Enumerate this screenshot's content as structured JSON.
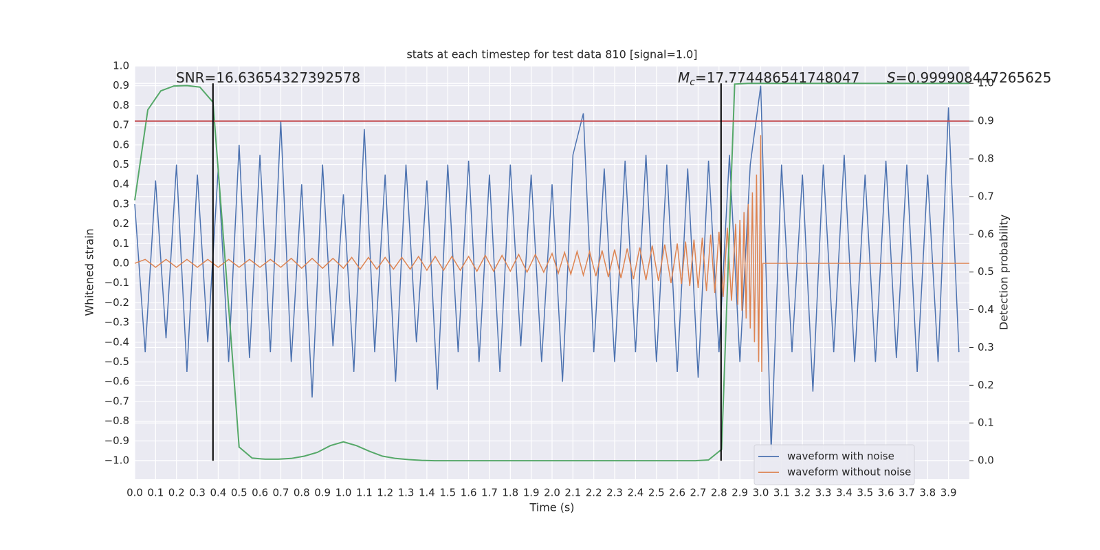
{
  "chart_data": {
    "type": "line",
    "title": "stats at each timestep for test data 810 [signal=1.0]",
    "xlabel": "Time (s)",
    "ylabel": "Whitened strain",
    "y2label": "Detection probability",
    "xlim": [
      0,
      4.0
    ],
    "ylim": [
      -1.094,
      1.0
    ],
    "y2lim": [
      -0.049,
      1.046
    ],
    "xticks": [
      {
        "value": 0,
        "label": "0.0"
      },
      0.1,
      0.2,
      0.3,
      0.4,
      0.5,
      0.6,
      0.7,
      0.8,
      0.9,
      {
        "value": 1,
        "label": "1.0"
      },
      1.1,
      1.2,
      1.3,
      1.4,
      1.5,
      1.6,
      1.7,
      1.8,
      1.9,
      {
        "value": 2,
        "label": "2.0"
      },
      2.1,
      2.2,
      2.3,
      2.4,
      2.5,
      2.6,
      2.7,
      2.8,
      2.9,
      {
        "value": 3,
        "label": "3.0"
      },
      3.1,
      3.2,
      3.3,
      3.4,
      3.5,
      3.6,
      3.7,
      3.8,
      3.9
    ],
    "yticks": [
      {
        "value": -1,
        "label": "−1.0"
      },
      {
        "value": -0.9,
        "label": "−0.9"
      },
      {
        "value": -0.8,
        "label": "−0.8"
      },
      {
        "value": -0.7,
        "label": "−0.7"
      },
      {
        "value": -0.6,
        "label": "−0.6"
      },
      {
        "value": -0.5,
        "label": "−0.5"
      },
      {
        "value": -0.4,
        "label": "−0.4"
      },
      {
        "value": -0.3,
        "label": "−0.3"
      },
      {
        "value": -0.2,
        "label": "−0.2"
      },
      {
        "value": -0.1,
        "label": "−0.1"
      },
      {
        "value": 0,
        "label": "0.0"
      },
      0.1,
      0.2,
      0.3,
      0.4,
      0.5,
      0.6,
      0.7,
      0.8,
      0.9,
      {
        "value": 1,
        "label": "1.0"
      }
    ],
    "y2ticks": [
      {
        "value": 0,
        "label": "0.0"
      },
      0.1,
      0.2,
      0.3,
      0.4,
      0.5,
      0.6,
      0.7,
      0.8,
      0.9,
      {
        "value": 1,
        "label": "1.0"
      }
    ],
    "grid": true,
    "legend": "lower right",
    "series": [
      {
        "name": "waveform with noise",
        "color": "#4c72b0",
        "x": [
          0,
          0.05,
          0.1,
          0.15,
          0.2,
          0.25,
          0.3,
          0.35,
          0.4,
          0.45,
          0.5,
          0.55,
          0.6,
          0.65,
          0.7,
          0.75,
          0.8,
          0.85,
          0.9,
          0.95,
          1.0,
          1.05,
          1.1,
          1.15,
          1.2,
          1.25,
          1.3,
          1.35,
          1.4,
          1.45,
          1.5,
          1.55,
          1.6,
          1.65,
          1.7,
          1.75,
          1.8,
          1.85,
          1.9,
          1.95,
          2.0,
          2.05,
          2.1,
          2.15,
          2.2,
          2.25,
          2.3,
          2.35,
          2.4,
          2.45,
          2.5,
          2.55,
          2.6,
          2.65,
          2.7,
          2.75,
          2.8,
          2.85,
          2.9,
          2.95,
          3.0,
          3.05,
          3.1,
          3.15,
          3.2,
          3.25,
          3.3,
          3.35,
          3.4,
          3.45,
          3.5,
          3.55,
          3.6,
          3.65,
          3.7,
          3.75,
          3.8,
          3.85,
          3.9,
          3.95
        ],
        "values": [
          0.3,
          -0.45,
          0.42,
          -0.38,
          0.5,
          -0.55,
          0.45,
          -0.4,
          0.48,
          -0.5,
          0.6,
          -0.48,
          0.55,
          -0.45,
          0.72,
          -0.5,
          0.4,
          -0.68,
          0.5,
          -0.42,
          0.35,
          -0.55,
          0.68,
          -0.45,
          0.45,
          -0.6,
          0.5,
          -0.4,
          0.42,
          -0.64,
          0.5,
          -0.45,
          0.52,
          -0.5,
          0.45,
          -0.55,
          0.5,
          -0.42,
          0.45,
          -0.5,
          0.4,
          -0.6,
          0.55,
          0.76,
          -0.45,
          0.48,
          -0.5,
          0.52,
          -0.45,
          0.55,
          -0.5,
          0.5,
          -0.55,
          0.48,
          -0.58,
          0.52,
          -0.45,
          0.55,
          -0.5,
          0.5,
          0.9,
          -0.95,
          0.5,
          -0.45,
          0.45,
          -0.65,
          0.5,
          -0.45,
          0.55,
          -0.5,
          0.45,
          -0.5,
          0.52,
          -0.48,
          0.5,
          -0.55,
          0.45,
          -0.5,
          0.79,
          -0.45
        ]
      },
      {
        "name": "waveform without noise",
        "color": "#dd8452",
        "x": [
          0,
          0.05,
          0.1,
          0.15,
          0.2,
          0.25,
          0.3,
          0.35,
          0.4,
          0.45,
          0.5,
          0.55,
          0.6,
          0.65,
          0.7,
          0.75,
          0.8,
          0.85,
          0.9,
          0.95,
          1.0,
          1.04,
          1.08,
          1.12,
          1.16,
          1.2,
          1.24,
          1.28,
          1.32,
          1.36,
          1.4,
          1.44,
          1.48,
          1.52,
          1.56,
          1.6,
          1.64,
          1.68,
          1.72,
          1.76,
          1.8,
          1.84,
          1.88,
          1.92,
          1.96,
          2.0,
          2.03,
          2.06,
          2.09,
          2.12,
          2.15,
          2.18,
          2.21,
          2.24,
          2.27,
          2.3,
          2.33,
          2.36,
          2.39,
          2.42,
          2.45,
          2.48,
          2.51,
          2.54,
          2.57,
          2.6,
          2.62,
          2.64,
          2.66,
          2.68,
          2.7,
          2.72,
          2.74,
          2.76,
          2.78,
          2.8,
          2.82,
          2.84,
          2.86,
          2.88,
          2.89,
          2.9,
          2.91,
          2.92,
          2.93,
          2.94,
          2.95,
          2.96,
          2.97,
          2.98,
          2.99,
          3.0,
          3.005,
          3.01,
          4.0
        ],
        "values": [
          0,
          0.02,
          -0.02,
          0.02,
          -0.02,
          0.02,
          -0.02,
          0.02,
          -0.02,
          0.02,
          -0.02,
          0.02,
          -0.02,
          0.02,
          -0.02,
          0.025,
          -0.025,
          0.025,
          -0.025,
          0.025,
          -0.025,
          0.03,
          -0.03,
          0.03,
          -0.03,
          0.03,
          -0.03,
          0.03,
          -0.03,
          0.035,
          -0.035,
          0.035,
          -0.035,
          0.035,
          -0.035,
          0.035,
          -0.04,
          0.04,
          -0.04,
          0.04,
          -0.04,
          0.045,
          -0.045,
          0.045,
          -0.045,
          0.05,
          -0.05,
          0.055,
          -0.055,
          0.06,
          -0.06,
          0.06,
          -0.065,
          0.065,
          -0.07,
          0.07,
          -0.075,
          0.075,
          -0.08,
          0.08,
          -0.085,
          0.09,
          -0.09,
          0.095,
          -0.1,
          0.1,
          -0.105,
          0.11,
          -0.115,
          0.12,
          -0.125,
          0.13,
          -0.14,
          0.145,
          -0.15,
          0.16,
          -0.17,
          0.18,
          -0.19,
          0.2,
          -0.21,
          0.22,
          -0.24,
          0.26,
          -0.28,
          0.3,
          -0.33,
          0.36,
          -0.4,
          0.45,
          -0.5,
          0.65,
          -0.55,
          0,
          0
        ]
      },
      {
        "color": "#55a868",
        "axis": "y2",
        "x": [
          0,
          0.0625,
          0.125,
          0.1875,
          0.25,
          0.3125,
          0.375,
          0.4375,
          0.5,
          0.5625,
          0.625,
          0.6875,
          0.75,
          0.8125,
          0.875,
          0.9375,
          1.0,
          1.0625,
          1.125,
          1.1875,
          1.25,
          1.3125,
          1.375,
          1.4375,
          1.5,
          1.5625,
          1.625,
          1.6875,
          1.75,
          1.8125,
          1.875,
          1.9375,
          2.0,
          2.0625,
          2.125,
          2.1875,
          2.25,
          2.3125,
          2.375,
          2.4375,
          2.5,
          2.5625,
          2.625,
          2.6875,
          2.75,
          2.8125,
          2.875,
          2.9375,
          3.0,
          3.0625,
          3.125,
          3.1875,
          3.25,
          3.3125,
          3.375,
          3.4375,
          3.5,
          3.5625,
          3.625,
          3.6875,
          3.75,
          3.8125,
          3.875,
          3.9375,
          4.0
        ],
        "values": [
          0.69,
          0.93,
          0.98,
          0.993,
          0.994,
          0.99,
          0.95,
          0.5,
          0.036,
          0.007,
          0.004,
          0.004,
          0.006,
          0.012,
          0.022,
          0.04,
          0.05,
          0.04,
          0.025,
          0.012,
          0.006,
          0.003,
          0.001,
          0,
          0,
          0,
          0,
          0,
          0,
          0,
          0,
          0,
          0,
          0,
          0,
          0,
          0,
          0,
          0,
          0,
          0,
          0,
          0,
          0,
          0.002,
          0.03,
          0.998,
          1,
          1,
          1,
          1,
          1,
          1,
          1,
          1,
          1,
          1,
          1,
          1,
          1,
          1,
          1,
          1,
          1,
          1
        ]
      }
    ],
    "threshold": {
      "value": 0.9,
      "axis": "y2",
      "color": "#c44e52"
    },
    "vlines": {
      "x": [
        0.375,
        2.81
      ],
      "color": "#000000"
    },
    "annotations": [
      {
        "text": "SNR=16.63654327392578"
      },
      {
        "symbol": "M",
        "sub": "c",
        "text": "=17.774486541748047"
      },
      {
        "symbol": "S",
        "text": "=0.999908447265625"
      }
    ]
  }
}
